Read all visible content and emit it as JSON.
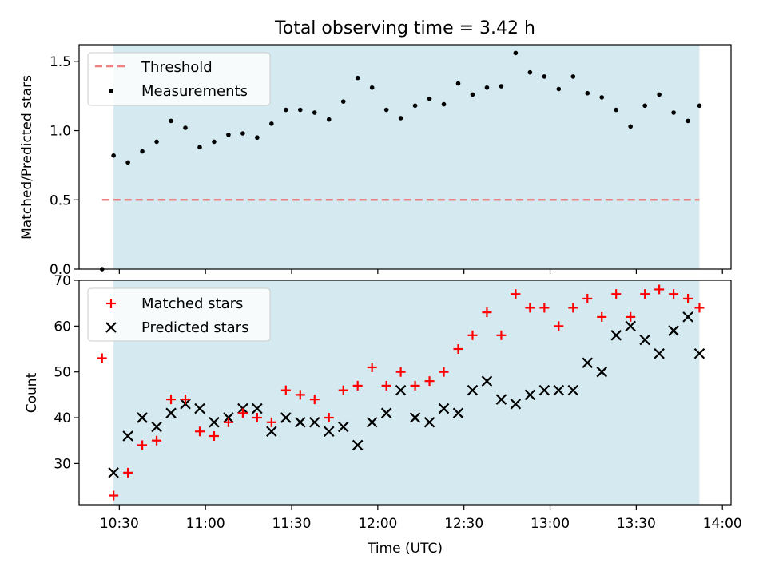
{
  "title": "Total observing time = 3.42 h",
  "colors": {
    "shade": "#d4eaf0",
    "threshold": "#f08080",
    "measurement": "#000000",
    "matched": "#ff0000",
    "predicted": "#000000"
  },
  "chart_data": [
    {
      "type": "scatter",
      "ylabel": "Matched/Predicted stars",
      "ylim": [
        0,
        1.62
      ],
      "yticks": [
        "0.0",
        "0.5",
        "1.0",
        "1.5"
      ],
      "xlim": [
        "10:16",
        "14:03"
      ],
      "shaded_interval": [
        "10:28",
        "13:52"
      ],
      "legend_position": "upper-left",
      "threshold": {
        "name": "Threshold",
        "value": 0.5,
        "x_start": "10:24",
        "x_end": "13:52"
      },
      "series": [
        {
          "name": "Measurements",
          "x": [
            "10:24",
            "10:28",
            "10:33",
            "10:38",
            "10:43",
            "10:48",
            "10:53",
            "10:58",
            "11:03",
            "11:08",
            "11:13",
            "11:18",
            "11:23",
            "11:28",
            "11:33",
            "11:38",
            "11:43",
            "11:48",
            "11:53",
            "11:58",
            "12:03",
            "12:08",
            "12:13",
            "12:18",
            "12:23",
            "12:28",
            "12:33",
            "12:38",
            "12:43",
            "12:48",
            "12:53",
            "12:58",
            "13:03",
            "13:08",
            "13:13",
            "13:18",
            "13:23",
            "13:28",
            "13:33",
            "13:38",
            "13:43",
            "13:48",
            "13:52"
          ],
          "y": [
            0.0,
            0.82,
            0.77,
            0.85,
            0.92,
            1.07,
            1.02,
            0.88,
            0.92,
            0.97,
            0.98,
            0.95,
            1.05,
            1.15,
            1.15,
            1.13,
            1.08,
            1.21,
            1.38,
            1.31,
            1.15,
            1.09,
            1.18,
            1.23,
            1.19,
            1.34,
            1.26,
            1.31,
            1.32,
            1.56,
            1.42,
            1.39,
            1.3,
            1.39,
            1.27,
            1.24,
            1.15,
            1.03,
            1.18,
            1.26,
            1.13,
            1.07,
            1.18
          ]
        }
      ]
    },
    {
      "type": "scatter",
      "xlabel": "Time (UTC)",
      "ylabel": "Count",
      "ylim": [
        21,
        70
      ],
      "yticks": [
        "30",
        "40",
        "50",
        "60",
        "70"
      ],
      "xlim": [
        "10:16",
        "14:03"
      ],
      "xticks": [
        "10:30",
        "11:00",
        "11:30",
        "12:00",
        "12:30",
        "13:00",
        "13:30",
        "14:00"
      ],
      "shaded_interval": [
        "10:28",
        "13:52"
      ],
      "legend_position": "upper-left",
      "series": [
        {
          "name": "Matched stars",
          "marker": "+",
          "x": [
            "10:24",
            "10:28",
            "10:33",
            "10:38",
            "10:43",
            "10:48",
            "10:53",
            "10:58",
            "11:03",
            "11:08",
            "11:13",
            "11:18",
            "11:23",
            "11:28",
            "11:33",
            "11:38",
            "11:43",
            "11:48",
            "11:53",
            "11:58",
            "12:03",
            "12:08",
            "12:13",
            "12:18",
            "12:23",
            "12:28",
            "12:33",
            "12:38",
            "12:43",
            "12:48",
            "12:53",
            "12:58",
            "13:03",
            "13:08",
            "13:13",
            "13:18",
            "13:23",
            "13:28",
            "13:33",
            "13:38",
            "13:43",
            "13:48",
            "13:52"
          ],
          "y": [
            53,
            23,
            28,
            34,
            35,
            44,
            44,
            37,
            36,
            39,
            41,
            40,
            39,
            46,
            45,
            44,
            40,
            46,
            47,
            51,
            47,
            50,
            47,
            48,
            50,
            55,
            58,
            63,
            58,
            67,
            64,
            64,
            60,
            64,
            66,
            62,
            67,
            62,
            67,
            68,
            67,
            66,
            64
          ]
        },
        {
          "name": "Predicted stars",
          "marker": "x",
          "x": [
            "10:28",
            "10:33",
            "10:38",
            "10:43",
            "10:48",
            "10:53",
            "10:58",
            "11:03",
            "11:08",
            "11:13",
            "11:18",
            "11:23",
            "11:28",
            "11:33",
            "11:38",
            "11:43",
            "11:48",
            "11:53",
            "11:58",
            "12:03",
            "12:08",
            "12:13",
            "12:18",
            "12:23",
            "12:28",
            "12:33",
            "12:38",
            "12:43",
            "12:48",
            "12:53",
            "12:58",
            "13:03",
            "13:08",
            "13:13",
            "13:18",
            "13:23",
            "13:28",
            "13:33",
            "13:38",
            "13:43",
            "13:48",
            "13:52"
          ],
          "y": [
            28,
            36,
            40,
            38,
            41,
            43,
            42,
            39,
            40,
            42,
            42,
            37,
            40,
            39,
            39,
            37,
            38,
            34,
            39,
            41,
            46,
            40,
            39,
            42,
            41,
            46,
            48,
            44,
            43,
            45,
            46,
            46,
            46,
            52,
            50,
            58,
            60,
            57,
            54,
            59,
            62,
            54
          ]
        }
      ]
    }
  ]
}
